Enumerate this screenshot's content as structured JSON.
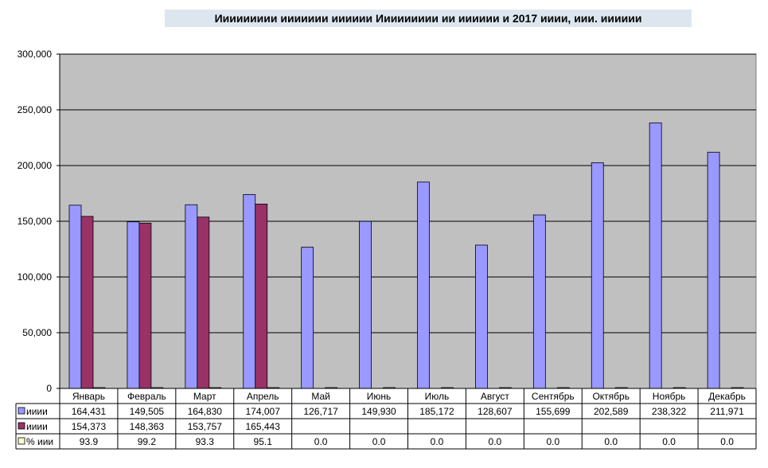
{
  "chart_data": {
    "type": "bar",
    "title": "Иииииииии иииииии  ииииии Иииииииии ии ииииии и 2017 ииии, иии. ииииии",
    "categories": [
      "Январь",
      "Февраль",
      "Март",
      "Апрель",
      "Май",
      "Июнь",
      "Июль",
      "Август",
      "Сентябрь",
      "Октябрь",
      "Ноябрь",
      "Декабрь"
    ],
    "series": [
      {
        "name": "ииии",
        "color": "#9999ff",
        "values": [
          164431,
          149505,
          164830,
          174007,
          126717,
          149930,
          185172,
          128607,
          155699,
          202589,
          238322,
          211971
        ],
        "labels": [
          "164,431",
          "149,505",
          "164,830",
          "174,007",
          "126,717",
          "149,930",
          "185,172",
          "128,607",
          "155,699",
          "202,589",
          "238,322",
          "211,971"
        ]
      },
      {
        "name": "ииии",
        "color": "#993366",
        "values": [
          154373,
          148363,
          153757,
          165443,
          null,
          null,
          null,
          null,
          null,
          null,
          null,
          null
        ],
        "labels": [
          "154,373",
          "148,363",
          "153,757",
          "165,443",
          "",
          "",
          "",
          "",
          "",
          "",
          "",
          ""
        ]
      },
      {
        "name": "% иии",
        "color": "#ffffcc",
        "values": [
          93.9,
          99.2,
          93.3,
          95.1,
          0.0,
          0.0,
          0.0,
          0.0,
          0.0,
          0.0,
          0.0,
          0.0
        ],
        "labels": [
          "93.9",
          "99.2",
          "93.3",
          "95.1",
          "0.0",
          "0.0",
          "0.0",
          "0.0",
          "0.0",
          "0.0",
          "0.0",
          "0.0"
        ]
      }
    ],
    "ylim": [
      0,
      300000
    ],
    "yticks": [
      "0",
      "50,000",
      "100,000",
      "150,000",
      "200,000",
      "250,000",
      "300,000"
    ],
    "grid": true,
    "plot_background": "#c0c0c0",
    "legend": "data-table"
  }
}
